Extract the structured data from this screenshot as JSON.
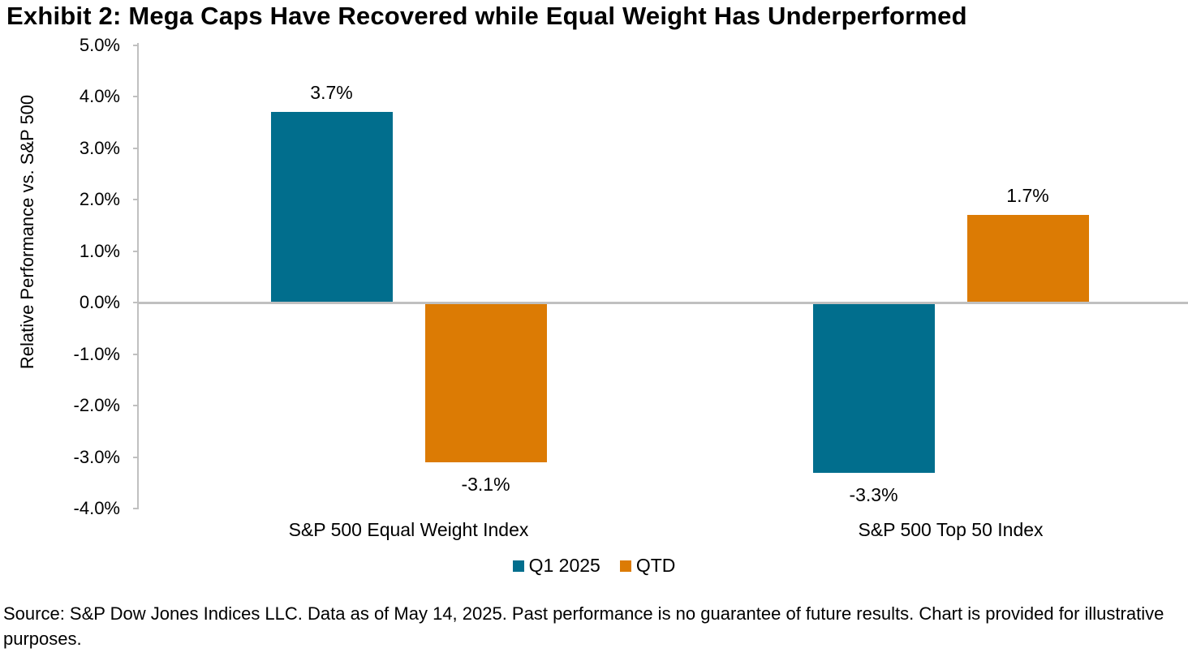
{
  "source_note": "Source: S&P Dow Jones Indices LLC. Data as of May 14, 2025. Past performance is no guarantee of future results. Chart is provided for illustrative purposes.",
  "colors": {
    "q1_2025_teal": "#016E8D",
    "qtd_orange": "#DC7B04",
    "axis_gray": "#C0C0C0",
    "text_black": "#000000"
  },
  "chart_data": {
    "type": "bar",
    "title": "Exhibit 2: Mega Caps Have Recovered while Equal Weight Has Underperformed",
    "categories": [
      "S&P 500 Equal Weight Index",
      "S&P 500 Top 50 Index"
    ],
    "series": [
      {
        "name": "Q1 2025",
        "color": "#016E8D",
        "values": [
          3.7,
          -3.3
        ],
        "data_labels": [
          "3.7%",
          "-3.3%"
        ]
      },
      {
        "name": "QTD",
        "color": "#DC7B04",
        "values": [
          -3.1,
          1.7
        ],
        "data_labels": [
          "-3.1%",
          "1.7%"
        ]
      }
    ],
    "xlabel": "",
    "ylabel": "Relative Performance vs. S&P 500",
    "ylim": [
      -4.0,
      5.0
    ],
    "ytick_interval": 1.0,
    "ytick_labels": [
      "5.0%",
      "4.0%",
      "3.0%",
      "2.0%",
      "1.0%",
      "0.0%",
      "-1.0%",
      "-2.0%",
      "-3.0%",
      "-4.0%"
    ],
    "grid": false,
    "legend_position": "bottom"
  }
}
